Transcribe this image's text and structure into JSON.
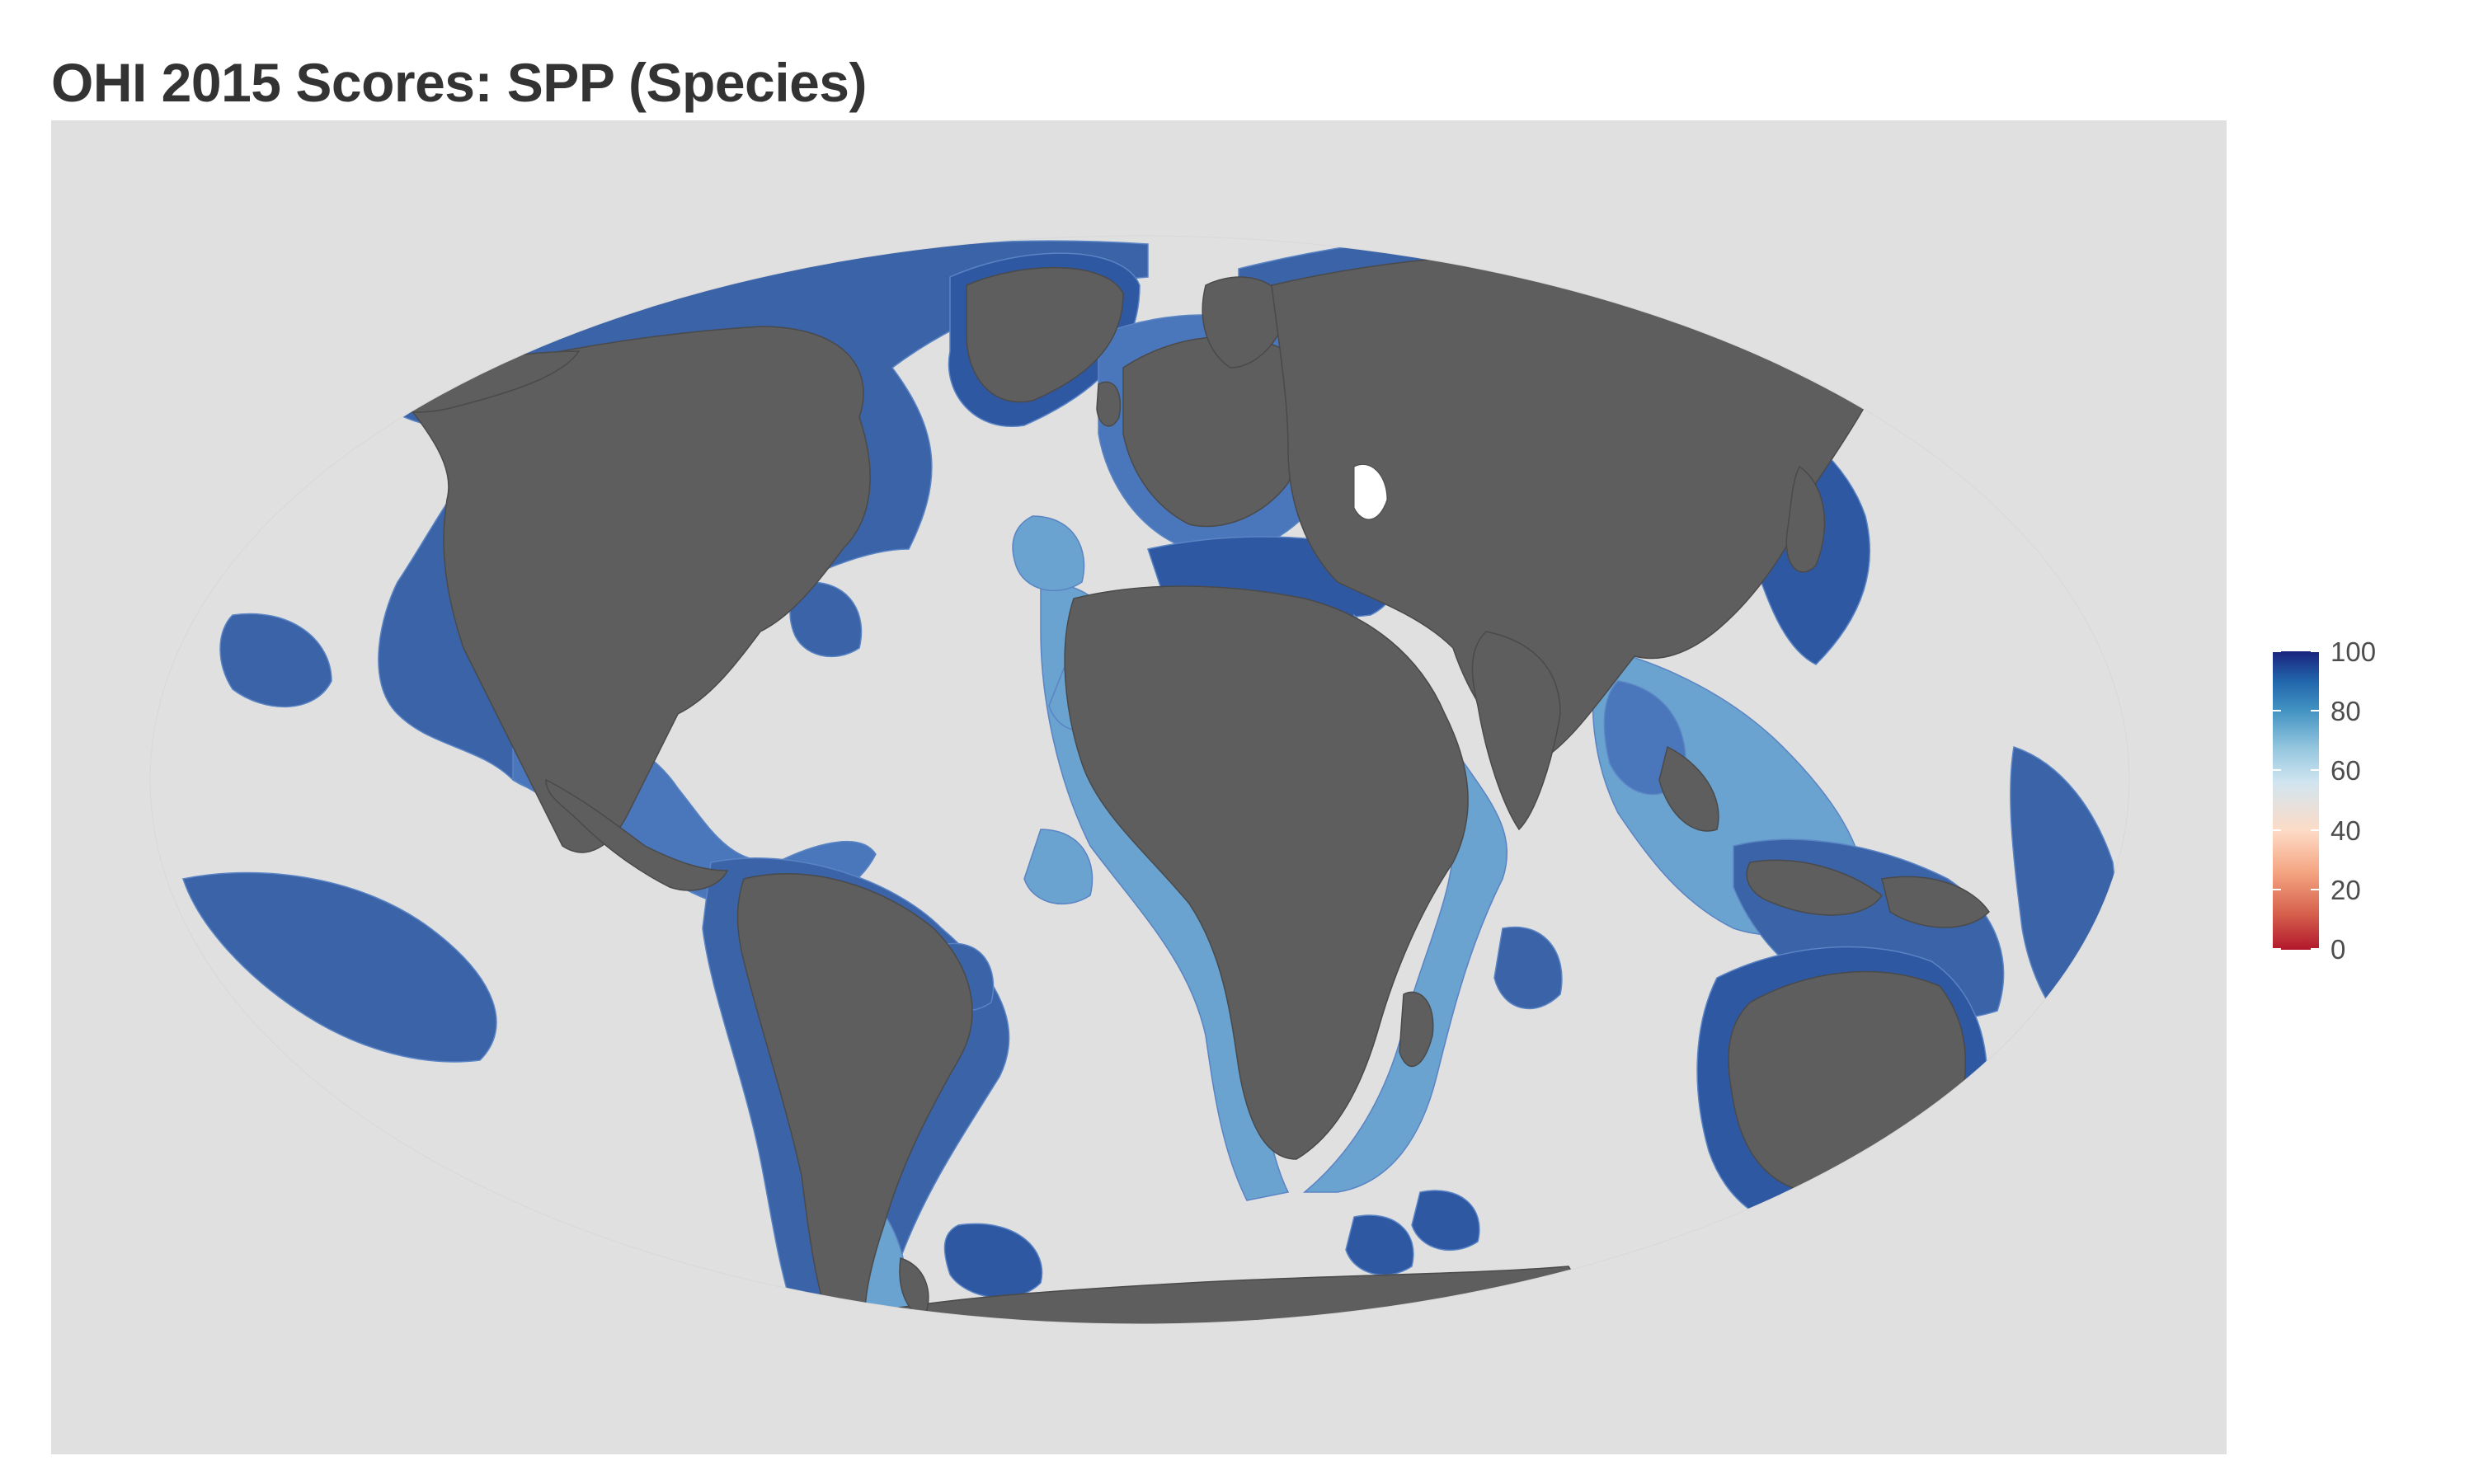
{
  "title": "OHI 2015 Scores: SPP (Species)",
  "colors": {
    "panel_background": "#e0e0e0",
    "land": "#5e5e5e",
    "ocean_default": "#3b63a8",
    "ocean_dark": "#2a4a9b",
    "ocean_light": "#6aa3cf"
  },
  "legend": {
    "labels": [
      "100",
      "80",
      "60",
      "40",
      "20",
      "0"
    ],
    "scale_min": 0,
    "scale_max": 100
  }
}
